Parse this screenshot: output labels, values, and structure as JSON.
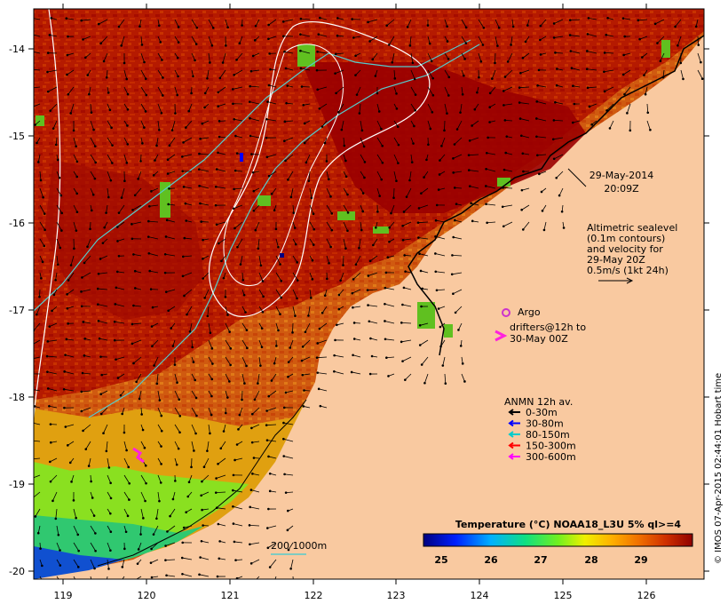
{
  "map": {
    "lon_ticks": [
      "119",
      "120",
      "121",
      "122",
      "123",
      "124",
      "125",
      "126"
    ],
    "lat_ticks": [
      "-14",
      "-15",
      "-16",
      "-17",
      "-18",
      "-19",
      "-20"
    ],
    "date_line1": "29-May-2014",
    "date_line2": "20:09Z",
    "altimetry": [
      "Altimetric sealevel",
      "(0.1m contours)",
      "and velocity for",
      "29-May 20Z",
      "0.5m/s (1kt 24h)"
    ],
    "argo_label": "Argo",
    "drifters_line1": "drifters@12h to",
    "drifters_line2": "30-May 00Z",
    "anmn_title": "ANMN 12h av.",
    "anmn_items": [
      {
        "label": "0-30m",
        "color": "#000000"
      },
      {
        "label": "30-80m",
        "color": "#0000ff"
      },
      {
        "label": "80-150m",
        "color": "#00cccc"
      },
      {
        "label": "150-300m",
        "color": "#ff0000"
      },
      {
        "label": "300-600m",
        "color": "#ff00ff"
      }
    ],
    "isobath_label": "200  1000m",
    "colorbar_title": "Temperature (°C) NOAA18_L3U 5% ql>=4",
    "colorbar_ticks": [
      "25",
      "26",
      "27",
      "28",
      "29"
    ],
    "credit": "© IMOS 07-Apr-2015 02:44:01 Hobart time",
    "colors": {
      "land": "#f9c9a0",
      "warm": "#b81800",
      "hot": "#9e0000",
      "isobath": "#55cccc",
      "contour": "#ffffff",
      "argo": "#cc33cc",
      "drifter": "#ff22dd"
    }
  }
}
